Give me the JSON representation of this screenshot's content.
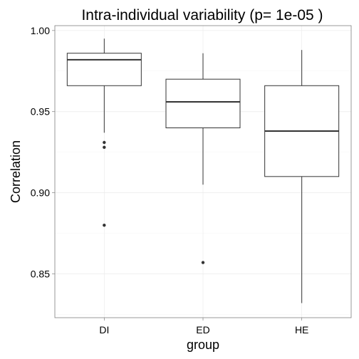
{
  "chart_data": {
    "type": "boxplot",
    "title": "Intra-individual variability (p= 1e-05 )",
    "xlabel": "group",
    "ylabel": "Correlation",
    "ylim": [
      0.823,
      1.003
    ],
    "yticks": [
      0.85,
      0.9,
      0.95,
      1.0
    ],
    "ytick_labels": [
      "0.85",
      "0.90",
      "0.95",
      "1.00"
    ],
    "grid": true,
    "categories": [
      "DI",
      "ED",
      "HE"
    ],
    "boxes": [
      {
        "group": "DI",
        "whisker_low": 0.937,
        "q1": 0.966,
        "median": 0.982,
        "q3": 0.986,
        "whisker_high": 0.995,
        "outliers": [
          0.931,
          0.928,
          0.88
        ]
      },
      {
        "group": "ED",
        "whisker_low": 0.905,
        "q1": 0.94,
        "median": 0.956,
        "q3": 0.97,
        "whisker_high": 0.986,
        "outliers": [
          0.857
        ]
      },
      {
        "group": "HE",
        "whisker_low": 0.832,
        "q1": 0.91,
        "median": 0.938,
        "q3": 0.966,
        "whisker_high": 0.988,
        "outliers": []
      }
    ]
  }
}
